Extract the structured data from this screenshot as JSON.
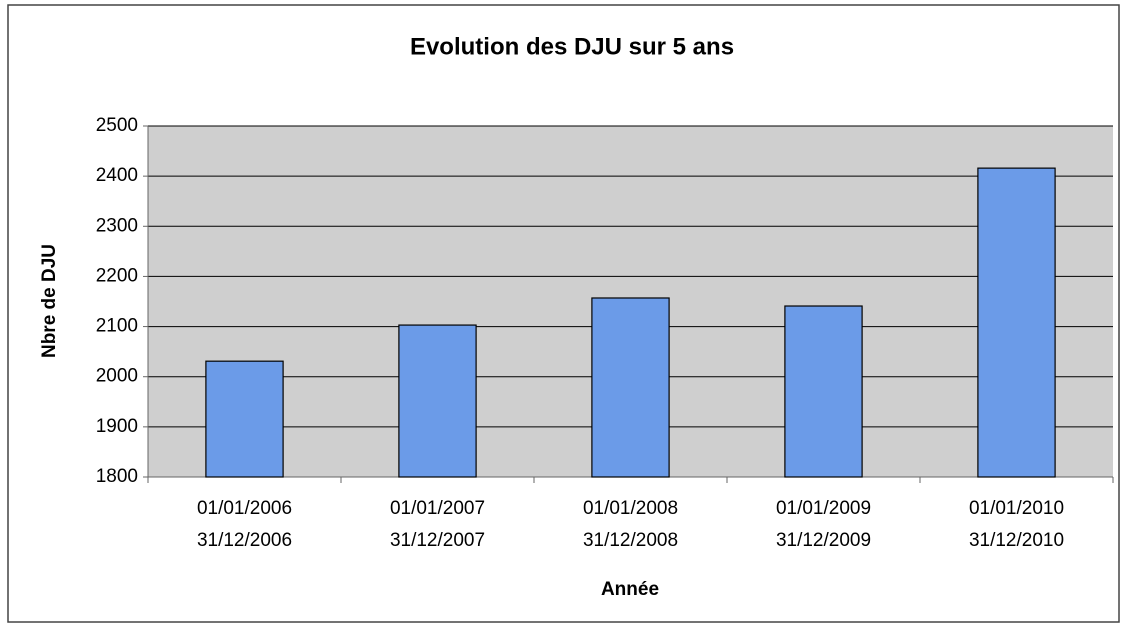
{
  "chart_data": {
    "type": "bar",
    "title": "Evolution des DJU sur 5 ans",
    "y_label": "Nbre de DJU",
    "x_label": "Année",
    "categories": [
      [
        "01/01/2006",
        "31/12/2006"
      ],
      [
        "01/01/2007",
        "31/12/2007"
      ],
      [
        "01/01/2008",
        "31/12/2008"
      ],
      [
        "01/01/2009",
        "31/12/2009"
      ],
      [
        "01/01/2010",
        "31/12/2010"
      ]
    ],
    "values": [
      2031,
      2103,
      2157,
      2141,
      2416
    ],
    "color": "#6b9be8",
    "ylim": [
      1800,
      2500
    ],
    "yticks": [
      1800,
      1900,
      2000,
      2100,
      2200,
      2300,
      2400,
      2500
    ],
    "grid": true
  }
}
